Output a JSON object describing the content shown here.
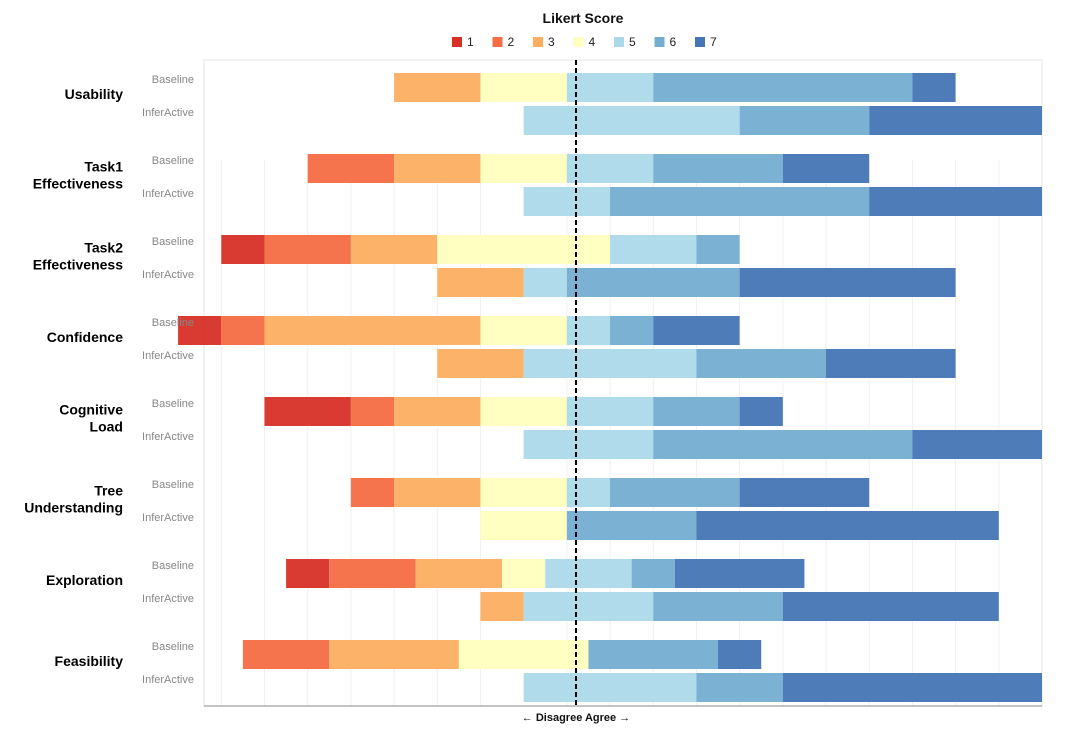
{
  "chart_data": {
    "type": "diverging-stacked-bar",
    "title": "",
    "legend_title": "Likert Score",
    "legend_placement": "top-center",
    "scores": [
      "1",
      "2",
      "3",
      "4",
      "5",
      "6",
      "7"
    ],
    "colors": [
      "#d73027",
      "#f46d43",
      "#fdae61",
      "#ffffbf",
      "#abd9e9",
      "#74add1",
      "#4575b4"
    ],
    "group_labels": [
      "Baseline",
      "InferActive"
    ],
    "xlabel": "← Disagree Agree →",
    "xlim": [
      -7.4,
      12
    ],
    "grid": true,
    "categories": [
      {
        "name": "Usability",
        "lines": [
          "Usability"
        ],
        "baseline": [
          0,
          0,
          2,
          2,
          2,
          6,
          1
        ],
        "inferactive": [
          0,
          0,
          0,
          0,
          5,
          3,
          4
        ]
      },
      {
        "name": "Task1 Effectiveness",
        "lines": [
          "Task1",
          "Effectiveness"
        ],
        "baseline": [
          0,
          2,
          2,
          2,
          2,
          3,
          2
        ],
        "inferactive": [
          0,
          0,
          0,
          0,
          2,
          6,
          4
        ]
      },
      {
        "name": "Task2 Effectiveness",
        "lines": [
          "Task2",
          "Effectiveness"
        ],
        "baseline": [
          1,
          2,
          2,
          4,
          2,
          1,
          0
        ],
        "inferactive": [
          0,
          0,
          2,
          0,
          1,
          4,
          5
        ]
      },
      {
        "name": "Confidence",
        "lines": [
          "Confidence"
        ],
        "baseline": [
          1,
          1,
          5,
          2,
          1,
          1,
          2
        ],
        "inferactive": [
          0,
          0,
          2,
          0,
          4,
          3,
          3
        ]
      },
      {
        "name": "Cognitive Load",
        "lines": [
          "Cognitive",
          "Load"
        ],
        "baseline": [
          2,
          1,
          2,
          2,
          2,
          2,
          1
        ],
        "inferactive": [
          0,
          0,
          0,
          0,
          3,
          6,
          3
        ]
      },
      {
        "name": "Tree Understanding",
        "lines": [
          "Tree",
          "Understanding"
        ],
        "baseline": [
          0,
          1,
          2,
          2,
          1,
          3,
          3
        ],
        "inferactive": [
          0,
          0,
          0,
          2,
          0,
          3,
          7
        ]
      },
      {
        "name": "Exploration",
        "lines": [
          "Exploration"
        ],
        "baseline": [
          1,
          2,
          2,
          1,
          2,
          1,
          3
        ],
        "inferactive": [
          0,
          0,
          1,
          0,
          3,
          3,
          5
        ]
      },
      {
        "name": "Feasibility",
        "lines": [
          "Feasibility"
        ],
        "baseline": [
          0,
          2,
          3,
          3,
          0,
          3,
          1
        ],
        "inferactive": [
          0,
          0,
          0,
          0,
          4,
          2,
          6
        ]
      }
    ]
  }
}
